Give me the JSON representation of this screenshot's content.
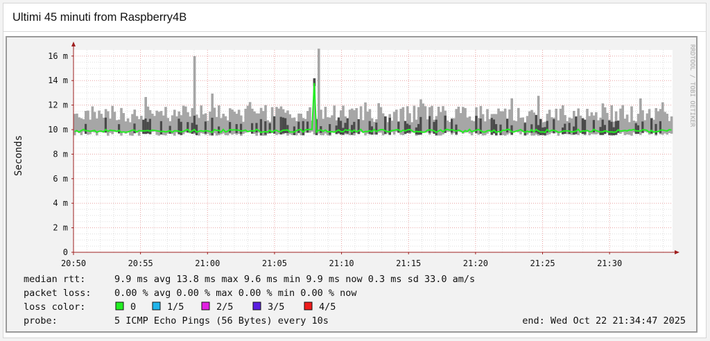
{
  "header": {
    "title": "Ultimi 45 minuti from Raspberry4B"
  },
  "watermark": "RRDTOOL / TOBI OETIKER",
  "chart_data": {
    "type": "area",
    "ylabel": "Seconds",
    "y_ticks": [
      "0",
      "2 m",
      "4 m",
      "6 m",
      "8 m",
      "10 m",
      "12 m",
      "14 m",
      "16 m"
    ],
    "y_tick_values": [
      0,
      2,
      4,
      6,
      8,
      10,
      12,
      14,
      16
    ],
    "ylim_ms": [
      0,
      16.5
    ],
    "x_ticks": [
      "20:50",
      "20:55",
      "21:00",
      "21:05",
      "21:10",
      "21:15",
      "21:20",
      "21:25",
      "21:30"
    ],
    "x_tick_minutes": [
      0,
      5,
      10,
      15,
      20,
      25,
      30,
      35,
      40
    ],
    "xlim_minutes": [
      0,
      44.7
    ],
    "grid": true,
    "series": [
      {
        "name": "0",
        "color": "#22ee22",
        "median_ms": 9.9
      }
    ],
    "spikes": [
      {
        "minute": 9.0,
        "max_ms": 16.0
      },
      {
        "minute": 18.0,
        "max_ms": 14.0,
        "median_ms": 13.8
      },
      {
        "minute": 18.3,
        "max_ms": 16.6
      }
    ],
    "colors": {
      "smoke": "#a6a6a6",
      "smoke_dark": "#4a4a4a",
      "median": "#22ee22",
      "grid_major": "#e8a0a0",
      "grid_minor": "#dddddd",
      "axis": "#9e1f1f",
      "plot_bg": "#ffffff"
    }
  },
  "legend": {
    "rows": [
      {
        "label": "median rtt:",
        "text": "9.9 ms avg   13.8 ms max   9.6 ms min   9.9 ms now   0.3 ms sd   33.0    am/s"
      },
      {
        "label": "packet loss:",
        "text": "0.00 % avg   0.00 % max   0.00 % min   0.00 % now"
      }
    ],
    "loss_color_label": "loss color:",
    "loss_colors": [
      {
        "label": "0",
        "color": "#22ee22"
      },
      {
        "label": "1/5",
        "color": "#1fb4ea"
      },
      {
        "label": "2/5",
        "color": "#e21fe2"
      },
      {
        "label": "3/5",
        "color": "#5a1ee0"
      },
      {
        "label": "4/5",
        "color": "#ee1b1b"
      }
    ],
    "probe_label": "probe:",
    "probe_text": "5 ICMP Echo Pings (56 Bytes) every 10s",
    "end_text": "end: Wed Oct 22 21:34:47 2025"
  }
}
